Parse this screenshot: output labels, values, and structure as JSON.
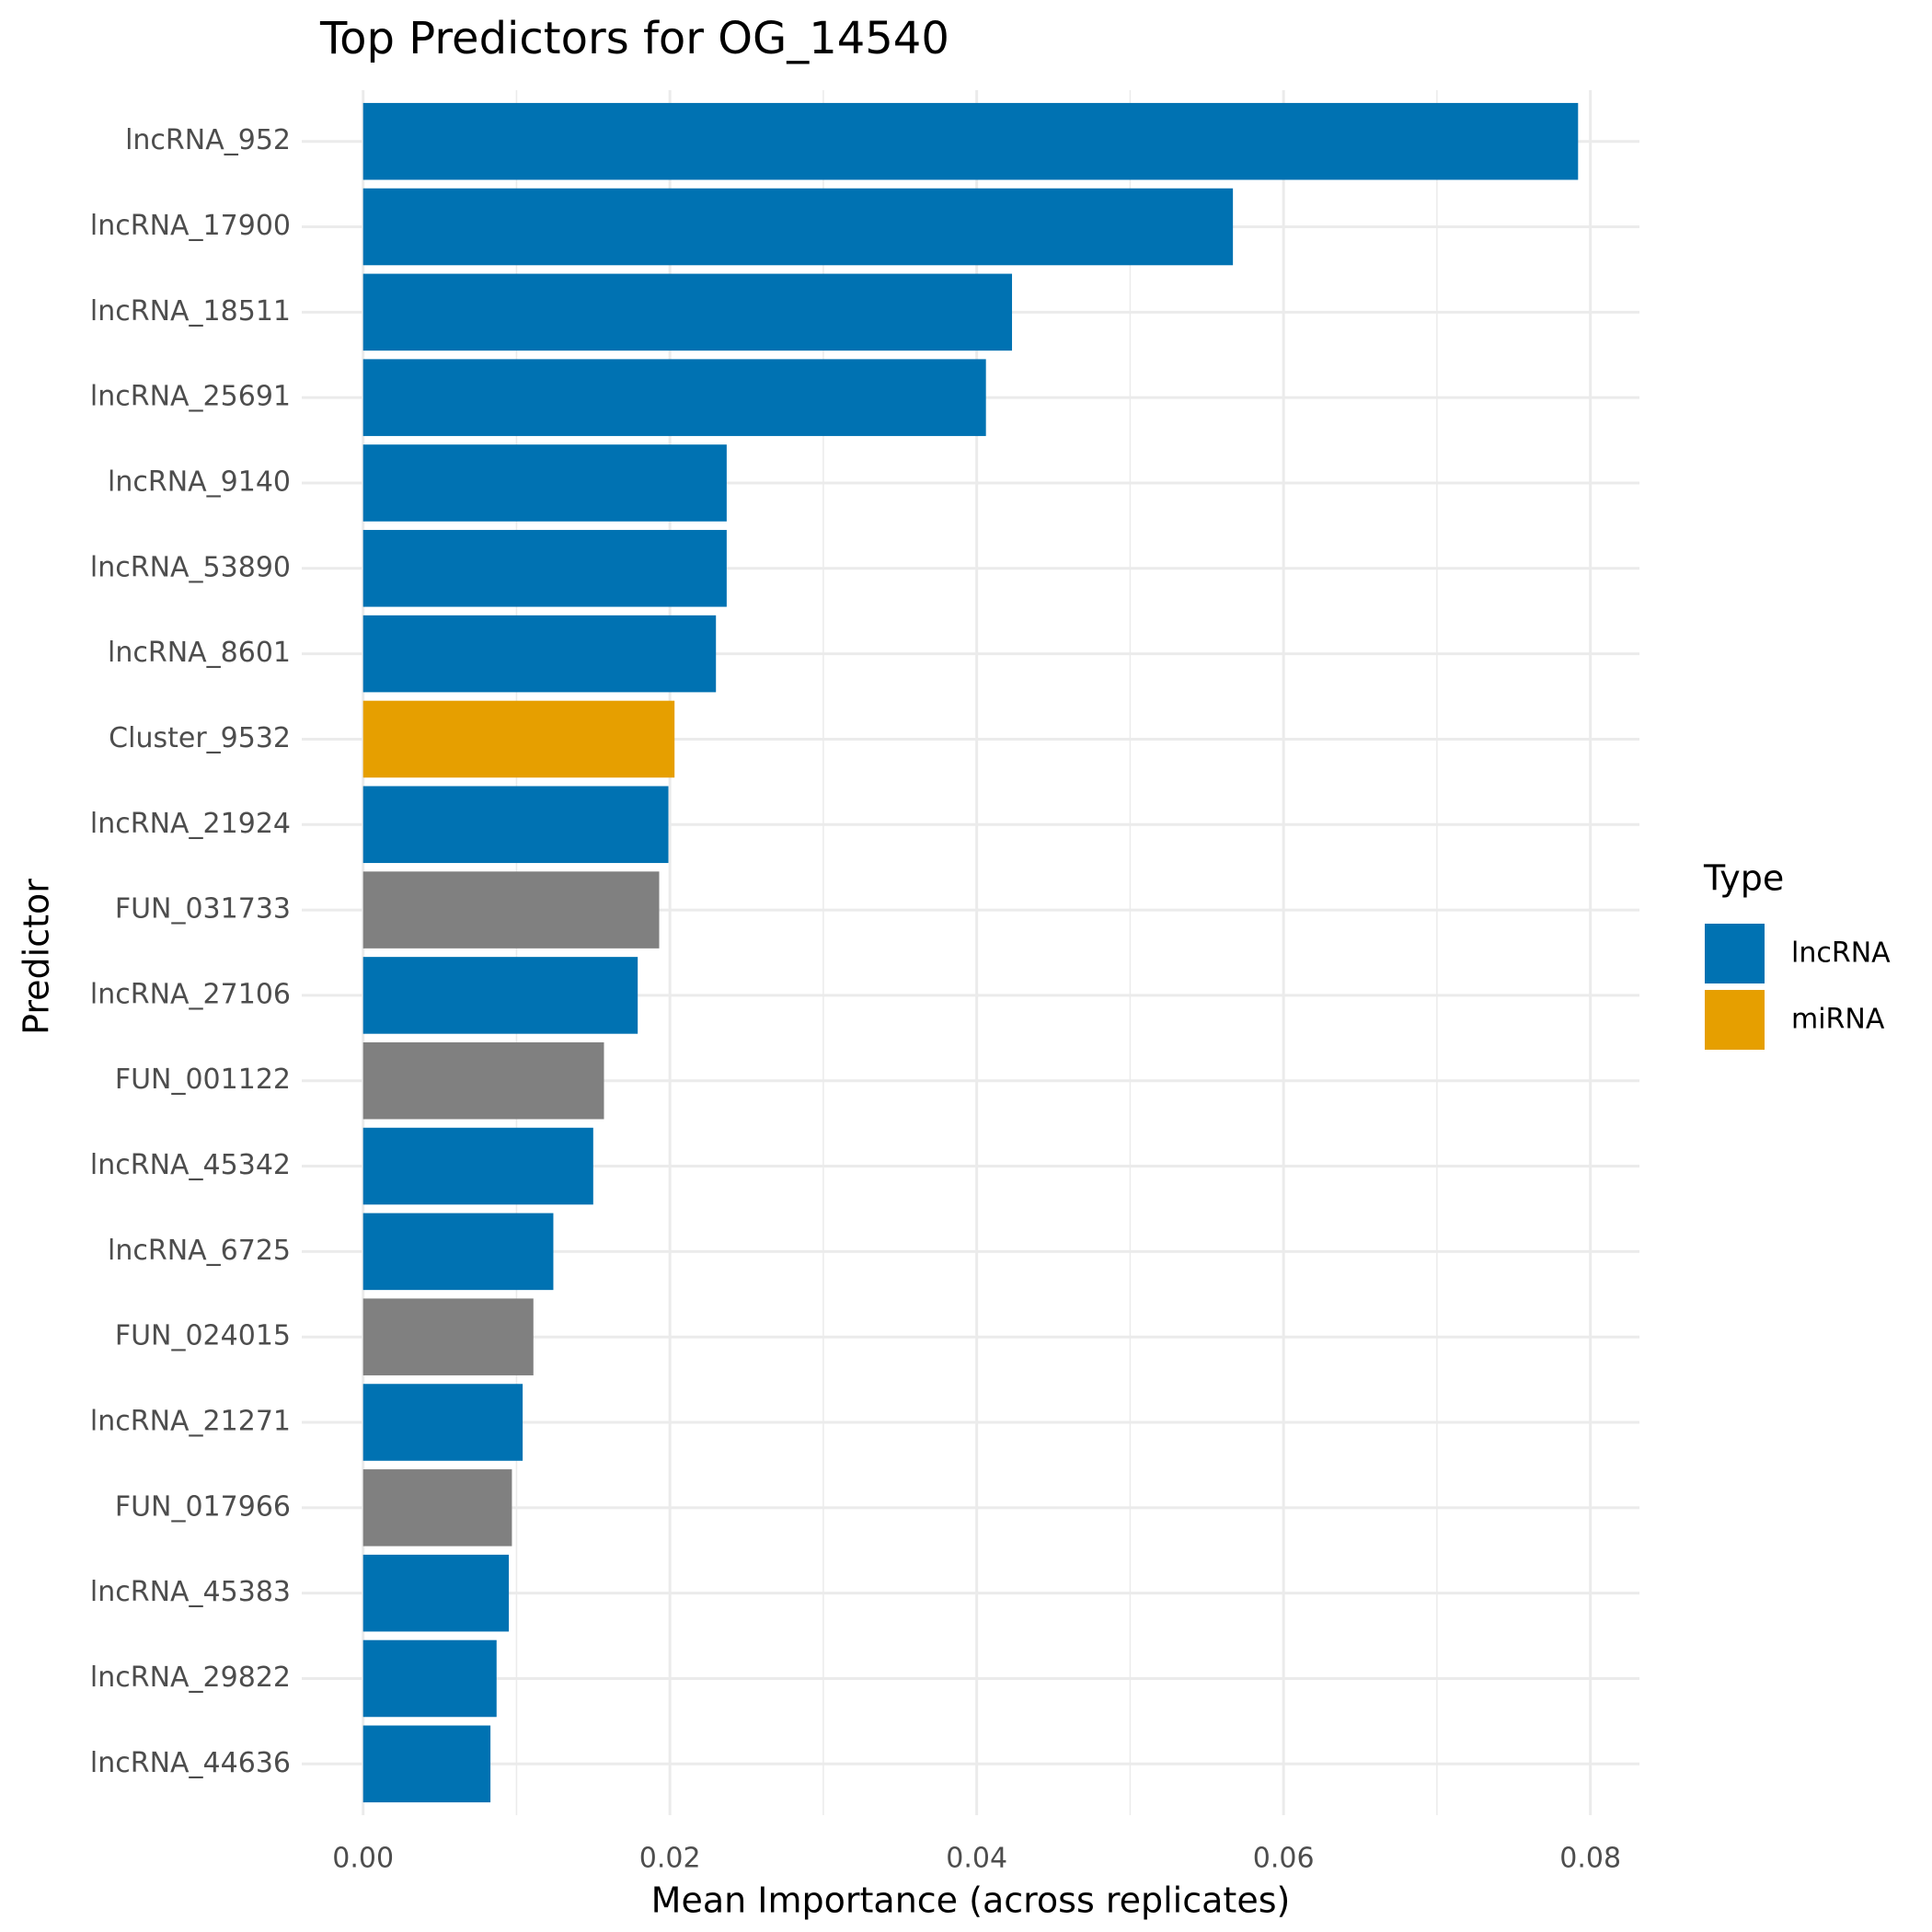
{
  "chart_data": {
    "type": "bar",
    "orientation": "horizontal",
    "title": "Top Predictors for OG_14540",
    "x_label": "Mean Importance (across replicates)",
    "y_label": "Predictor",
    "categories": [
      "lncRNA_952",
      "lncRNA_17900",
      "lncRNA_18511",
      "lncRNA_25691",
      "lncRNA_9140",
      "lncRNA_53890",
      "lncRNA_8601",
      "Cluster_9532",
      "lncRNA_21924",
      "FUN_031733",
      "lncRNA_27106",
      "FUN_001122",
      "lncRNA_45342",
      "lncRNA_6725",
      "FUN_024015",
      "lncRNA_21271",
      "FUN_017966",
      "lncRNA_45383",
      "lncRNA_29822",
      "lncRNA_44636"
    ],
    "values": [
      0.0792,
      0.0567,
      0.0423,
      0.0406,
      0.0237,
      0.0237,
      0.023,
      0.0203,
      0.0199,
      0.0193,
      0.0179,
      0.0157,
      0.015,
      0.0124,
      0.0111,
      0.0104,
      0.0097,
      0.0095,
      0.0087,
      0.0083
    ],
    "colors": [
      "#0072b2",
      "#0072b2",
      "#0072b2",
      "#0072b2",
      "#0072b2",
      "#0072b2",
      "#0072b2",
      "#e69f00",
      "#0072b2",
      "#808080",
      "#0072b2",
      "#808080",
      "#0072b2",
      "#0072b2",
      "#808080",
      "#0072b2",
      "#808080",
      "#0072b2",
      "#0072b2",
      "#0072b2"
    ],
    "xlim": [
      -0.004,
      0.0832
    ],
    "xticks": [
      {
        "value": 0,
        "label": "0.00"
      },
      {
        "value": 0.02,
        "label": "0.02"
      },
      {
        "value": 0.04,
        "label": "0.04"
      },
      {
        "value": 0.06,
        "label": "0.06"
      },
      {
        "value": 0.08,
        "label": "0.08"
      }
    ],
    "minor_xticks": [
      0.01,
      0.03,
      0.05,
      0.07
    ],
    "grid": true,
    "legend": {
      "title": "Type",
      "position": "right",
      "items": [
        {
          "name": "lncRNA",
          "color": "#0072b2"
        },
        {
          "name": "miRNA",
          "color": "#e69f00"
        }
      ]
    }
  }
}
